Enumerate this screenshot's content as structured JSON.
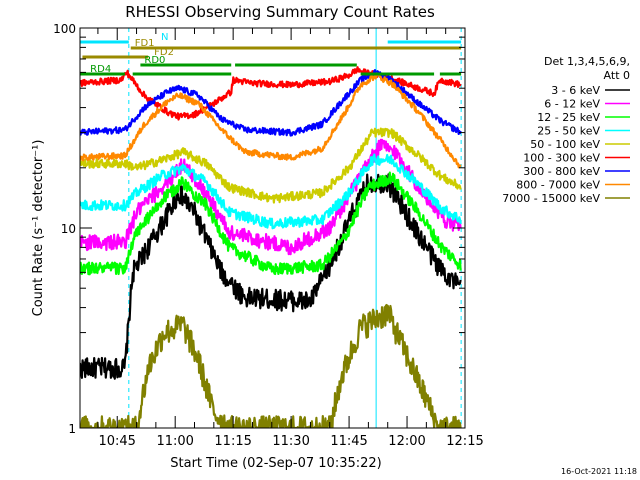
{
  "chart_data": {
    "type": "line",
    "title": "RHESSI Observing Summary Count Rates",
    "xlabel": "Start Time (02-Sep-07 10:35:22)",
    "ylabel": "Count Rate (s⁻¹ detector⁻¹)",
    "y_scale": "log",
    "ylim": [
      1,
      100
    ],
    "xlim": [
      "10:35:22",
      "12:15"
    ],
    "y_ticks": [
      "1",
      "10",
      "100"
    ],
    "x_ticks": [
      "10:45",
      "11:00",
      "11:15",
      "11:30",
      "11:45",
      "12:00",
      "12:15"
    ],
    "legend_title": [
      "Det 1,3,4,5,6,9,",
      "Att 0"
    ],
    "legend_position": "right",
    "timestamp": "16-Oct-2021 11:18",
    "flags": [
      {
        "name": "N",
        "color": "#00e5ff",
        "segments": [
          [
            "10:35:22",
            "10:48:00"
          ],
          [
            "11:55:00",
            "12:14:00"
          ]
        ]
      },
      {
        "name": "FD1",
        "color": "#9a8a00",
        "segments": [
          [
            "10:48:30",
            "12:14:00"
          ]
        ]
      },
      {
        "name": "FD2",
        "color": "#9a8a00",
        "segments": [
          [
            "10:36:00",
            "10:53:00"
          ]
        ]
      },
      {
        "name": "RD0",
        "color": "#009900",
        "segments": [
          [
            "10:51:00",
            "11:14:30"
          ],
          [
            "11:15:30",
            "11:47:00"
          ]
        ]
      },
      {
        "name": "RD4",
        "color": "#009900",
        "segments": [
          [
            "10:35:22",
            "10:47:00"
          ],
          [
            "10:49:00",
            "11:14:30"
          ],
          [
            "11:48:00",
            "12:07:00"
          ],
          [
            "12:08:30",
            "12:14:00"
          ]
        ]
      }
    ],
    "vertical_markers": [
      {
        "time": "10:48:00",
        "color": "#00e5ff",
        "style": "dashed"
      },
      {
        "time": "11:52:00",
        "color": "#00e5ff",
        "style": "solid"
      },
      {
        "time": "12:14:00",
        "color": "#00e5ff",
        "style": "dashed"
      }
    ],
    "series": [
      {
        "name": "3 - 6 keV",
        "color": "#000000",
        "noise": 0.12,
        "points": [
          [
            "10:35:22",
            2.0
          ],
          [
            "10:47:00",
            2.0
          ],
          [
            "10:49:00",
            6.0
          ],
          [
            "10:56:00",
            10.0
          ],
          [
            "11:01:00",
            15.0
          ],
          [
            "11:05:00",
            12.0
          ],
          [
            "11:12:00",
            6.0
          ],
          [
            "11:18:00",
            4.5
          ],
          [
            "11:35:00",
            4.3
          ],
          [
            "11:40:00",
            6.5
          ],
          [
            "11:46:00",
            12.0
          ],
          [
            "11:50:00",
            17.0
          ],
          [
            "11:55:00",
            17.0
          ],
          [
            "12:02:00",
            10.0
          ],
          [
            "12:08:00",
            6.5
          ],
          [
            "12:14:00",
            5.0
          ]
        ]
      },
      {
        "name": "6 - 12 keV",
        "color": "#ff00ff",
        "noise": 0.09,
        "points": [
          [
            "10:35:22",
            8.5
          ],
          [
            "10:47:00",
            8.5
          ],
          [
            "10:50:00",
            12.0
          ],
          [
            "10:58:00",
            17.0
          ],
          [
            "11:02:00",
            21.0
          ],
          [
            "11:08:00",
            15.0
          ],
          [
            "11:14:00",
            9.5
          ],
          [
            "11:30:00",
            8.0
          ],
          [
            "11:40:00",
            10.0
          ],
          [
            "11:47:00",
            17.0
          ],
          [
            "11:53:00",
            26.0
          ],
          [
            "11:57:00",
            24.0
          ],
          [
            "12:04:00",
            15.0
          ],
          [
            "12:10:00",
            11.0
          ],
          [
            "12:14:00",
            10.0
          ]
        ]
      },
      {
        "name": "12 - 25 keV",
        "color": "#00ff00",
        "noise": 0.07,
        "points": [
          [
            "10:35:22",
            6.3
          ],
          [
            "10:47:00",
            6.3
          ],
          [
            "10:50:00",
            9.5
          ],
          [
            "10:57:00",
            14.0
          ],
          [
            "11:02:00",
            17.0
          ],
          [
            "11:08:00",
            13.0
          ],
          [
            "11:14:00",
            8.0
          ],
          [
            "11:25:00",
            6.2
          ],
          [
            "11:38:00",
            6.5
          ],
          [
            "11:44:00",
            9.0
          ],
          [
            "11:50:00",
            16.0
          ],
          [
            "11:56:00",
            18.0
          ],
          [
            "12:03:00",
            12.0
          ],
          [
            "12:09:00",
            8.0
          ],
          [
            "12:14:00",
            6.5
          ]
        ]
      },
      {
        "name": "25 - 50 keV",
        "color": "#00ffff",
        "noise": 0.06,
        "points": [
          [
            "10:35:22",
            13.0
          ],
          [
            "10:47:00",
            13.0
          ],
          [
            "10:50:00",
            15.0
          ],
          [
            "10:57:00",
            18.5
          ],
          [
            "11:02:00",
            20.0
          ],
          [
            "11:08:00",
            17.0
          ],
          [
            "11:14:00",
            12.0
          ],
          [
            "11:25:00",
            10.5
          ],
          [
            "11:38:00",
            11.0
          ],
          [
            "11:45:00",
            15.0
          ],
          [
            "11:51:00",
            22.0
          ],
          [
            "11:56:00",
            22.0
          ],
          [
            "12:03:00",
            16.5
          ],
          [
            "12:09:00",
            12.5
          ],
          [
            "12:14:00",
            11.0
          ]
        ]
      },
      {
        "name": "50 - 100 keV",
        "color": "#cccc00",
        "noise": 0.05,
        "points": [
          [
            "10:35:22",
            21.0
          ],
          [
            "10:47:00",
            21.0
          ],
          [
            "10:50:00",
            20.0
          ],
          [
            "10:57:00",
            22.0
          ],
          [
            "11:02:00",
            24.0
          ],
          [
            "11:08:00",
            21.0
          ],
          [
            "11:14:00",
            16.0
          ],
          [
            "11:25:00",
            14.0
          ],
          [
            "11:38:00",
            15.0
          ],
          [
            "11:45:00",
            20.0
          ],
          [
            "11:51:00",
            30.0
          ],
          [
            "11:56:00",
            30.0
          ],
          [
            "12:03:00",
            23.0
          ],
          [
            "12:09:00",
            18.0
          ],
          [
            "12:14:00",
            16.0
          ]
        ]
      },
      {
        "name": "100 - 300 keV",
        "color": "#ff0000",
        "noise": 0.035,
        "points": [
          [
            "10:35:22",
            53.0
          ],
          [
            "10:46:00",
            55.0
          ],
          [
            "10:47:30",
            60.0
          ],
          [
            "10:52:00",
            46.0
          ],
          [
            "10:58:00",
            38.0
          ],
          [
            "11:01:00",
            36.0
          ],
          [
            "11:05:00",
            37.0
          ],
          [
            "11:10:00",
            42.0
          ],
          [
            "11:14:30",
            48.0
          ],
          [
            "11:15:00",
            55.0
          ],
          [
            "11:20:00",
            53.0
          ],
          [
            "11:30:00",
            52.0
          ],
          [
            "11:40:00",
            54.0
          ],
          [
            "11:45:00",
            58.0
          ],
          [
            "11:47:00",
            62.0
          ],
          [
            "11:49:00",
            60.0
          ],
          [
            "11:53:00",
            58.0
          ],
          [
            "11:57:00",
            55.0
          ],
          [
            "12:03:00",
            50.0
          ],
          [
            "12:07:00",
            47.0
          ],
          [
            "12:08:30",
            55.0
          ],
          [
            "12:14:00",
            52.0
          ]
        ]
      },
      {
        "name": "300 - 800 keV",
        "color": "#0000ff",
        "noise": 0.035,
        "points": [
          [
            "10:35:22",
            30.0
          ],
          [
            "10:47:00",
            31.0
          ],
          [
            "10:52:00",
            40.0
          ],
          [
            "10:58:00",
            48.0
          ],
          [
            "11:01:00",
            50.0
          ],
          [
            "11:06:00",
            46.0
          ],
          [
            "11:12:00",
            35.0
          ],
          [
            "11:18:00",
            31.0
          ],
          [
            "11:30:00",
            30.0
          ],
          [
            "11:38:00",
            33.0
          ],
          [
            "11:44:00",
            45.0
          ],
          [
            "11:48:00",
            55.0
          ],
          [
            "11:52:00",
            60.0
          ],
          [
            "11:56:00",
            55.0
          ],
          [
            "12:03:00",
            42.0
          ],
          [
            "12:09:00",
            34.0
          ],
          [
            "12:14:00",
            30.0
          ]
        ]
      },
      {
        "name": "800 - 7000 keV",
        "color": "#ff8800",
        "noise": 0.035,
        "points": [
          [
            "10:35:22",
            22.5
          ],
          [
            "10:47:00",
            23.0
          ],
          [
            "10:52:00",
            33.0
          ],
          [
            "10:58:00",
            43.0
          ],
          [
            "11:01:00",
            46.0
          ],
          [
            "11:06:00",
            42.0
          ],
          [
            "11:12:00",
            31.0
          ],
          [
            "11:18:00",
            24.0
          ],
          [
            "11:30:00",
            22.5
          ],
          [
            "11:38:00",
            25.0
          ],
          [
            "11:44:00",
            38.0
          ],
          [
            "11:48:00",
            52.0
          ],
          [
            "11:52:00",
            58.0
          ],
          [
            "11:56:00",
            53.0
          ],
          [
            "12:03:00",
            38.0
          ],
          [
            "12:09:00",
            27.0
          ],
          [
            "12:14:00",
            20.0
          ]
        ]
      },
      {
        "name": "7000 - 15000 keV",
        "color": "#808000",
        "noise": 0.15,
        "points": [
          [
            "10:35:22",
            1.0
          ],
          [
            "10:50:00",
            1.0
          ],
          [
            "10:53:00",
            2.0
          ],
          [
            "10:57:00",
            3.0
          ],
          [
            "11:02:00",
            3.3
          ],
          [
            "11:06:00",
            2.2
          ],
          [
            "11:10:00",
            1.2
          ],
          [
            "11:14:00",
            1.0
          ],
          [
            "11:40:00",
            1.0
          ],
          [
            "11:43:00",
            1.8
          ],
          [
            "11:48:00",
            3.2
          ],
          [
            "11:55:00",
            3.8
          ],
          [
            "12:00:00",
            2.3
          ],
          [
            "12:05:00",
            1.4
          ],
          [
            "12:08:00",
            1.0
          ],
          [
            "12:14:00",
            1.0
          ]
        ]
      }
    ]
  }
}
